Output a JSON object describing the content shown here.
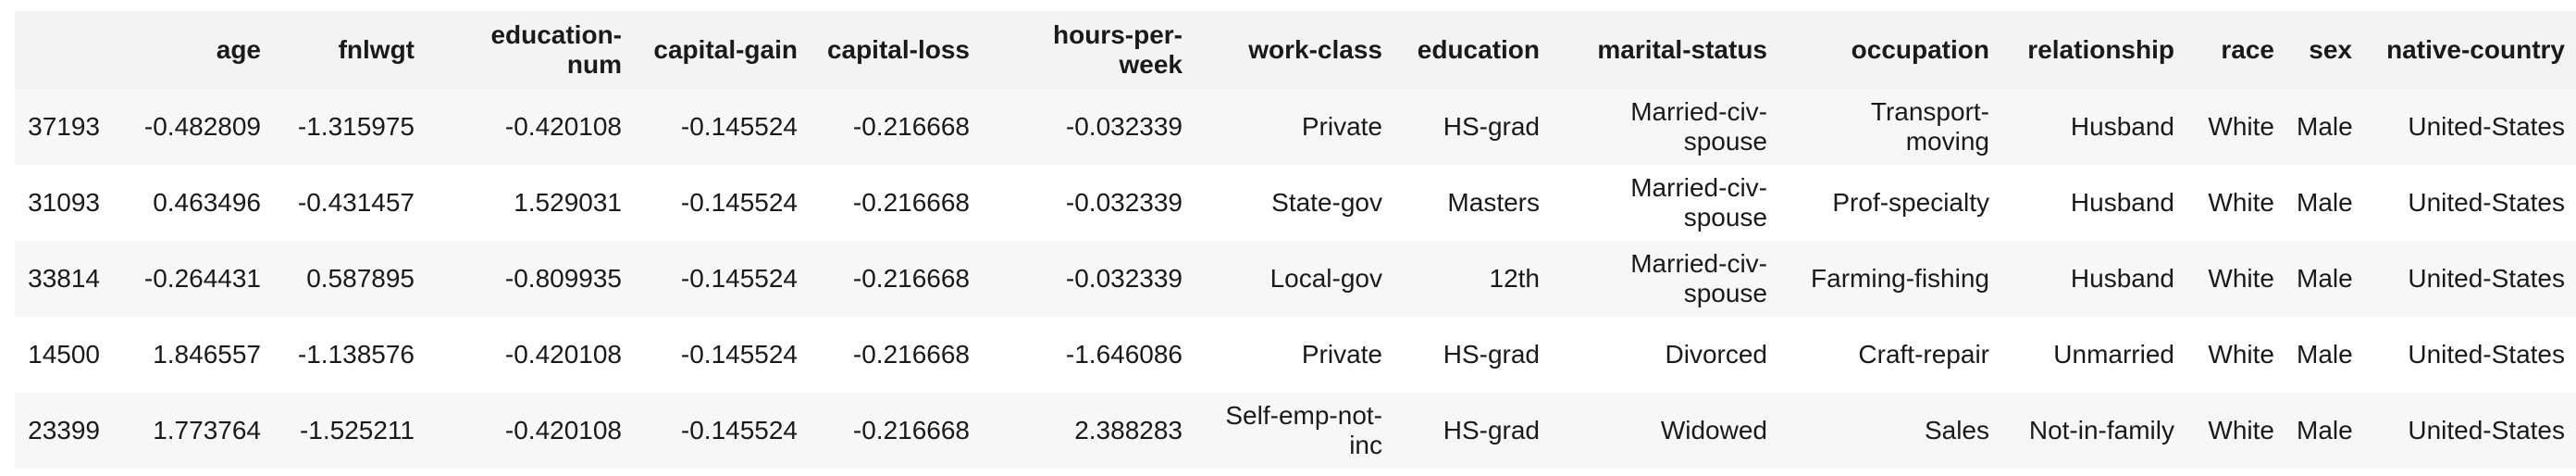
{
  "table": {
    "columns": [
      "",
      "age",
      "fnlwgt",
      "education-num",
      "capital-gain",
      "capital-loss",
      "hours-per-week",
      "work-class",
      "education",
      "marital-status",
      "occupation",
      "relationship",
      "race",
      "sex",
      "native-country"
    ],
    "rows": [
      {
        "index": "37193",
        "cells": [
          "-0.482809",
          "-1.315975",
          "-0.420108",
          "-0.145524",
          "-0.216668",
          "-0.032339",
          "Private",
          "HS-grad",
          "Married-civ-spouse",
          "Transport-moving",
          "Husband",
          "White",
          "Male",
          "United-States"
        ]
      },
      {
        "index": "31093",
        "cells": [
          "0.463496",
          "-0.431457",
          "1.529031",
          "-0.145524",
          "-0.216668",
          "-0.032339",
          "State-gov",
          "Masters",
          "Married-civ-spouse",
          "Prof-specialty",
          "Husband",
          "White",
          "Male",
          "United-States"
        ]
      },
      {
        "index": "33814",
        "cells": [
          "-0.264431",
          "0.587895",
          "-0.809935",
          "-0.145524",
          "-0.216668",
          "-0.032339",
          "Local-gov",
          "12th",
          "Married-civ-spouse",
          "Farming-fishing",
          "Husband",
          "White",
          "Male",
          "United-States"
        ]
      },
      {
        "index": "14500",
        "cells": [
          "1.846557",
          "-1.138576",
          "-0.420108",
          "-0.145524",
          "-0.216668",
          "-1.646086",
          "Private",
          "HS-grad",
          "Divorced",
          "Craft-repair",
          "Unmarried",
          "White",
          "Male",
          "United-States"
        ]
      },
      {
        "index": "23399",
        "cells": [
          "1.773764",
          "-1.525211",
          "-0.420108",
          "-0.145524",
          "-0.216668",
          "2.388283",
          "Self-emp-not-inc",
          "HS-grad",
          "Widowed",
          "Sales",
          "Not-in-family",
          "White",
          "Male",
          "United-States"
        ]
      }
    ]
  }
}
